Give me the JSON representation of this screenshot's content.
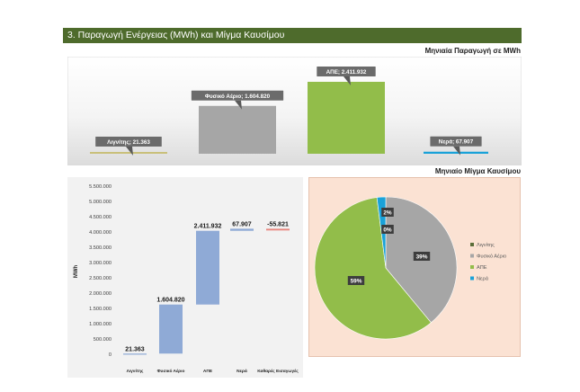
{
  "section_title": "3. Παραγωγή Ενέργειας (MWh) και Μίγμα Καυσίμου",
  "monthly_production_title": "Μηνιαία Παραγωγή σε MWh",
  "monthly_mix_title": "Μηνιαίο Μίγμα Καυσίμου",
  "chart_data": [
    {
      "type": "bar",
      "title": "",
      "categories": [
        "Λιγνίτης",
        "Φυσικό Αέριο",
        "ΑΠΕ",
        "Νερά"
      ],
      "values": [
        21363,
        1604820,
        2411932,
        67907
      ],
      "data_labels": [
        "Λιγνίτης; 21.363",
        "Φυσικό Αέριο; 1.604.820",
        "ΑΠΕ; 2.411.932",
        "Νερά; 67.907"
      ],
      "colors": [
        "#c9c07a",
        "#a6a6a6",
        "#92bd4a",
        "#1aa2d8"
      ],
      "grid": false
    },
    {
      "type": "bar",
      "subtype": "waterfall",
      "ylabel": "MWh",
      "ylim": [
        0,
        5500000
      ],
      "yticks": [
        "0",
        "500.000",
        "1.000.000",
        "1.500.000",
        "2.000.000",
        "2.500.000",
        "3.000.000",
        "3.500.000",
        "4.000.000",
        "4.500.000",
        "5.000.000",
        "5.500.000"
      ],
      "categories": [
        "Λιγνίτης",
        "Φυσικό Αέριο",
        "ΑΠΕ",
        "Νερά",
        "Καθαρές Εισαγωγές"
      ],
      "values": [
        21363,
        1604820,
        2411932,
        67907,
        -55821
      ],
      "data_labels": [
        "21.363",
        "1.604.820",
        "2.411.932",
        "67.907",
        "-55.821"
      ],
      "colors": [
        "#8faad6",
        "#8faad6",
        "#8faad6",
        "#8faad6",
        "#e8877f"
      ]
    },
    {
      "type": "pie",
      "categories": [
        "Λιγνίτης",
        "Φυσικό Αέριο",
        "ΑΠΕ",
        "Νερά"
      ],
      "values": [
        0,
        39,
        59,
        2
      ],
      "data_labels": [
        "0%",
        "39%",
        "59%",
        "2%"
      ],
      "colors": [
        "#5b6e3a",
        "#a6a6a6",
        "#92bd4a",
        "#1aa2d8"
      ],
      "legend": "right"
    }
  ]
}
